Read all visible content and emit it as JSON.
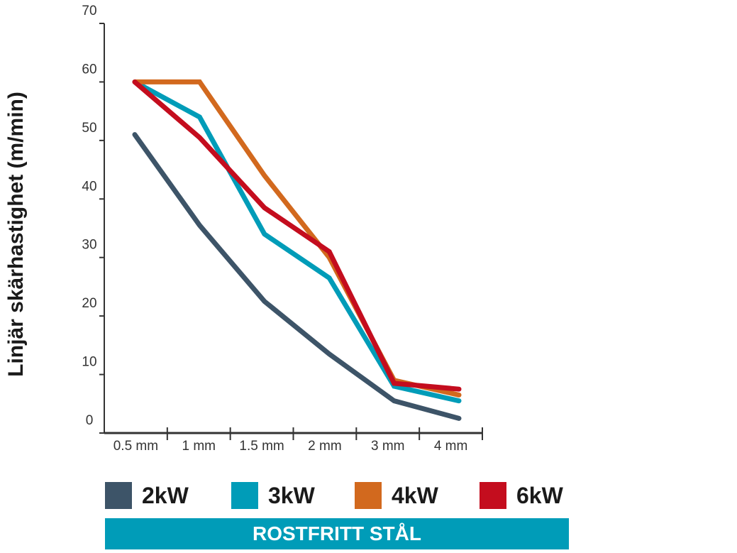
{
  "chart_data": {
    "type": "line",
    "ylabel": "Linjär skärhastighet (m/min)",
    "xlabel": "",
    "categories": [
      "0.5 mm",
      "1 mm",
      "1.5 mm",
      "2 mm",
      "3 mm",
      "4 mm"
    ],
    "ylim": [
      0,
      70
    ],
    "yticks": [
      0,
      10,
      20,
      30,
      40,
      50,
      60,
      70
    ],
    "grid": false,
    "legend_position": "bottom",
    "series": [
      {
        "name": "2kW",
        "color": "#3d5468",
        "values": [
          51,
          35.5,
          22.5,
          13.5,
          5.5,
          2.5
        ]
      },
      {
        "name": "3kW",
        "color": "#009cb8",
        "values": [
          60,
          54,
          34,
          26.5,
          8,
          5.5
        ]
      },
      {
        "name": "4kW",
        "color": "#d2691e",
        "values": [
          60,
          60,
          44,
          30,
          9,
          6.5
        ]
      },
      {
        "name": "6kW",
        "color": "#c40d1e",
        "values": [
          60,
          50.5,
          38.5,
          31,
          8.5,
          7.5
        ]
      }
    ],
    "banner": "ROSTFRITT STÅL"
  }
}
